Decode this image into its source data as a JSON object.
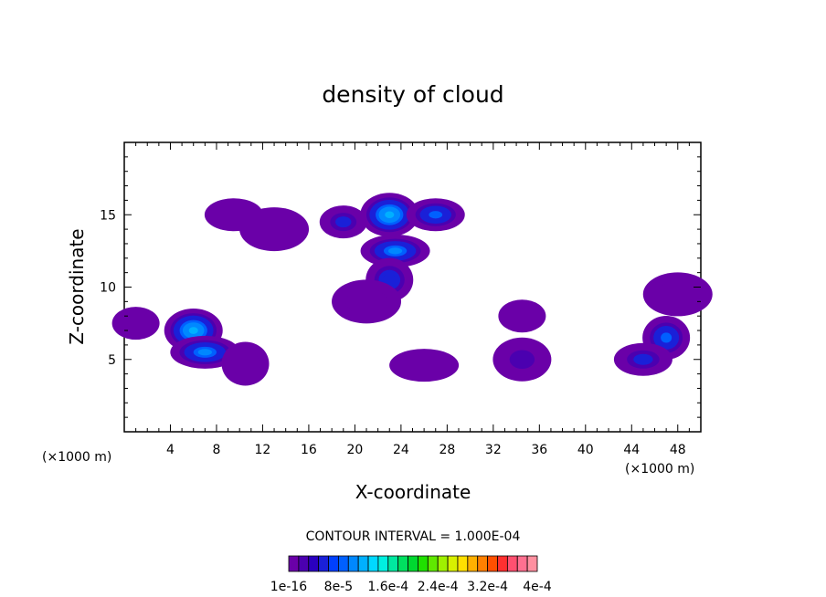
{
  "chart_data": {
    "type": "heatmap",
    "title": "density of cloud",
    "xlabel": "X-coordinate",
    "ylabel": "Z-coordinate",
    "x_unit_left": "(×1000 m)",
    "x_unit_right": "(×1000 m)",
    "xlim": [
      0,
      50
    ],
    "ylim": [
      0,
      20
    ],
    "x_ticks": [
      4,
      8,
      12,
      16,
      20,
      24,
      28,
      32,
      36,
      40,
      44,
      48
    ],
    "y_ticks": [
      5,
      10,
      15
    ],
    "contour_interval_text": "CONTOUR INTERVAL = 1.000E-04",
    "colorbar": {
      "labels": [
        "1e-16",
        "8e-5",
        "1.6e-4",
        "2.4e-4",
        "3.2e-4",
        "4e-4"
      ],
      "colors": [
        "#6a00a8",
        "#4b00b0",
        "#2a00c0",
        "#1a20d8",
        "#0040ff",
        "#0060ff",
        "#0088ff",
        "#00b0ff",
        "#00d8ff",
        "#00f0e0",
        "#00e8a0",
        "#00e060",
        "#00d830",
        "#20e000",
        "#60e800",
        "#a0f000",
        "#d8f000",
        "#ffe000",
        "#ffb000",
        "#ff8000",
        "#ff5000",
        "#ff3030",
        "#ff5070",
        "#ff7090",
        "#ff90a0"
      ]
    },
    "cells": [
      {
        "x": 1,
        "z": 7.5,
        "v": 3e-05
      },
      {
        "x": 6,
        "z": 7,
        "v": 0.00014
      },
      {
        "x": 7,
        "z": 5.5,
        "v": 0.00011
      },
      {
        "x": 10.5,
        "z": 4.7,
        "v": 2e-05
      },
      {
        "x": 9.5,
        "z": 15,
        "v": 1e-05
      },
      {
        "x": 13,
        "z": 14,
        "v": 1e-05
      },
      {
        "x": 19,
        "z": 14.5,
        "v": 6e-05
      },
      {
        "x": 23,
        "z": 15,
        "v": 0.00013
      },
      {
        "x": 23.5,
        "z": 12.5,
        "v": 0.0001
      },
      {
        "x": 23,
        "z": 10.5,
        "v": 7e-05
      },
      {
        "x": 27,
        "z": 15,
        "v": 8e-05
      },
      {
        "x": 21,
        "z": 9,
        "v": 2e-05
      },
      {
        "x": 34.5,
        "z": 8,
        "v": 2e-05
      },
      {
        "x": 34.5,
        "z": 5,
        "v": 4e-05
      },
      {
        "x": 26,
        "z": 4.6,
        "v": 1e-05
      },
      {
        "x": 47,
        "z": 6.5,
        "v": 9e-05
      },
      {
        "x": 45,
        "z": 5,
        "v": 6e-05
      },
      {
        "x": 48,
        "z": 9.5,
        "v": 2e-05
      }
    ]
  }
}
